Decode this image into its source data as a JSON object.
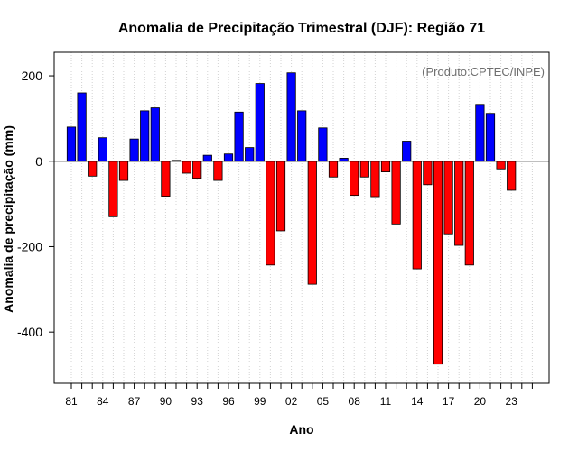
{
  "chart_data": {
    "type": "bar",
    "title": "Anomalia de Precipitação Trimestral (DJF): Região 71",
    "xlabel": "Ano",
    "ylabel": "Anomalia de precipitação (mm)",
    "annotation": "(Produto:CPTEC/INPE)",
    "ylim": [
      -520,
      255
    ],
    "yticks": [
      -400,
      -200,
      0,
      200
    ],
    "ytick_labels": [
      "-400",
      "-200",
      "0",
      "200"
    ],
    "x_tick_labels": [
      "81",
      "84",
      "87",
      "90",
      "93",
      "96",
      "99",
      "02",
      "05",
      "08",
      "11",
      "14",
      "17",
      "20",
      "23"
    ],
    "grid": "vertical dotted",
    "colors": {
      "positive": "#0000ff",
      "negative": "#ff0000",
      "bar_border": "#000000",
      "grid": "#d3d3d3"
    },
    "categories": [
      "1981",
      "1982",
      "1983",
      "1984",
      "1985",
      "1986",
      "1987",
      "1988",
      "1989",
      "1990",
      "1991",
      "1992",
      "1993",
      "1994",
      "1995",
      "1996",
      "1997",
      "1998",
      "1999",
      "2000",
      "2001",
      "2002",
      "2003",
      "2004",
      "2005",
      "2006",
      "2007",
      "2008",
      "2009",
      "2010",
      "2011",
      "2012",
      "2013",
      "2014",
      "2015",
      "2016",
      "2017",
      "2018",
      "2019",
      "2020",
      "2021",
      "2022",
      "2023"
    ],
    "values": [
      80,
      160,
      -35,
      55,
      -130,
      -45,
      52,
      118,
      125,
      -82,
      2,
      -28,
      -40,
      14,
      -45,
      17,
      115,
      32,
      182,
      -243,
      -163,
      207,
      118,
      -288,
      78,
      -37,
      7,
      -80,
      -37,
      -83,
      -25,
      -147,
      47,
      -252,
      -55,
      -475,
      -170,
      -197,
      -243,
      133,
      112,
      -18,
      -68
    ]
  }
}
